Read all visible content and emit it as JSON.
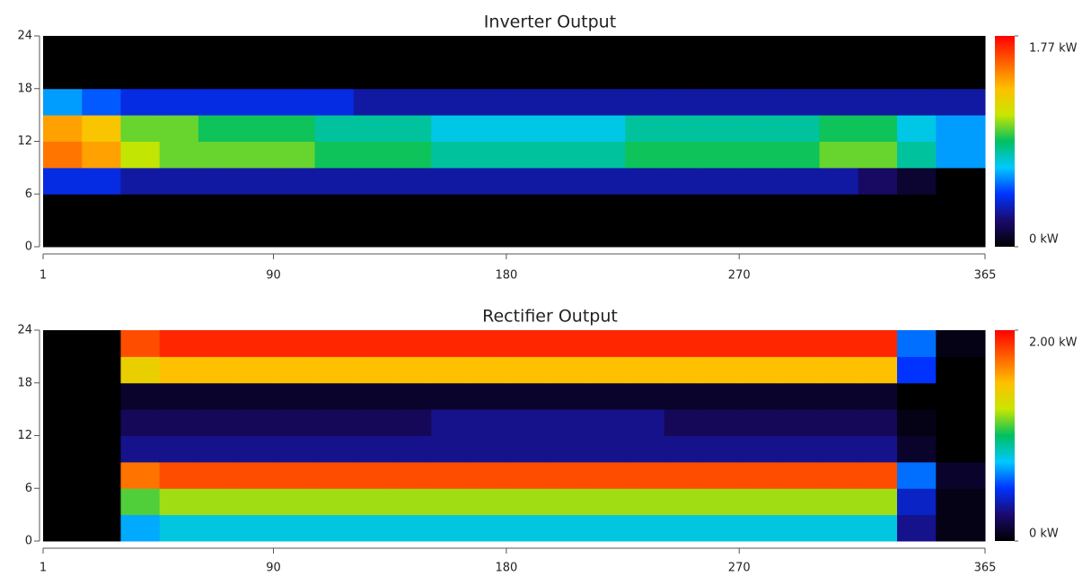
{
  "chart_data": [
    {
      "type": "heatmap",
      "title": "Inverter Output",
      "xbins": [
        1,
        16,
        31,
        46,
        61,
        76,
        91,
        106,
        121,
        136,
        151,
        166,
        181,
        196,
        211,
        226,
        241,
        256,
        271,
        286,
        301,
        316,
        331,
        346,
        365
      ],
      "ybins": [
        0,
        3,
        6,
        9,
        12,
        15,
        18,
        21,
        24
      ],
      "values": [
        [
          0,
          0,
          0,
          0,
          0,
          0,
          0,
          0,
          0,
          0,
          0,
          0,
          0,
          0,
          0,
          0,
          0,
          0,
          0,
          0,
          0,
          0,
          0,
          0
        ],
        [
          0,
          0,
          0,
          0,
          0,
          0,
          0,
          0,
          0,
          0,
          0,
          0,
          0,
          0,
          0,
          0,
          0,
          0,
          0,
          0,
          0,
          0,
          0,
          0
        ],
        [
          0.4,
          0.4,
          0.3,
          0.3,
          0.3,
          0.3,
          0.3,
          0.3,
          0.3,
          0.3,
          0.3,
          0.3,
          0.3,
          0.3,
          0.3,
          0.3,
          0.3,
          0.3,
          0.3,
          0.3,
          0.3,
          0.2,
          0.1,
          0
        ],
        [
          1.5,
          1.4,
          1.1,
          1.0,
          1.0,
          1.0,
          1.0,
          0.9,
          0.9,
          0.9,
          0.8,
          0.8,
          0.8,
          0.8,
          0.8,
          0.9,
          0.9,
          0.9,
          0.9,
          0.9,
          1.0,
          1.0,
          0.8,
          0.6
        ],
        [
          1.4,
          1.3,
          1.0,
          1.0,
          0.9,
          0.9,
          0.9,
          0.8,
          0.8,
          0.8,
          0.7,
          0.7,
          0.7,
          0.7,
          0.7,
          0.8,
          0.8,
          0.8,
          0.8,
          0.8,
          0.9,
          0.9,
          0.7,
          0.6
        ],
        [
          0.6,
          0.5,
          0.4,
          0.4,
          0.4,
          0.4,
          0.4,
          0.4,
          0.3,
          0.3,
          0.3,
          0.3,
          0.3,
          0.3,
          0.3,
          0.3,
          0.3,
          0.3,
          0.3,
          0.3,
          0.3,
          0.3,
          0.3,
          0.3
        ],
        [
          0,
          0,
          0,
          0,
          0,
          0,
          0,
          0,
          0,
          0,
          0,
          0,
          0,
          0,
          0,
          0,
          0,
          0,
          0,
          0,
          0,
          0,
          0,
          0
        ],
        [
          0,
          0,
          0,
          0,
          0,
          0,
          0,
          0,
          0,
          0,
          0,
          0,
          0,
          0,
          0,
          0,
          0,
          0,
          0,
          0,
          0,
          0,
          0,
          0
        ]
      ],
      "xlim": [
        1,
        365
      ],
      "xticks": [
        1,
        90,
        180,
        270,
        365
      ],
      "ylim": [
        0,
        24
      ],
      "yticks": [
        0,
        6,
        12,
        18,
        24
      ],
      "zlim": [
        0,
        1.77
      ],
      "zticks": [
        {
          "value": 1.77,
          "label": "1.77 kW"
        },
        {
          "value": 0,
          "label": "0 kW"
        }
      ],
      "colormap": [
        "#000000",
        "#1a0a6e",
        "#0033ff",
        "#00c8ff",
        "#00c060",
        "#c8e600",
        "#ffc000",
        "#ff6000",
        "#ff0000"
      ]
    },
    {
      "type": "heatmap",
      "title": "Rectifier Output",
      "xbins": [
        1,
        16,
        31,
        46,
        61,
        76,
        91,
        106,
        121,
        136,
        151,
        166,
        181,
        196,
        211,
        226,
        241,
        256,
        271,
        286,
        301,
        316,
        331,
        346,
        365
      ],
      "ybins": [
        0,
        3,
        6,
        9,
        12,
        15,
        18,
        21,
        24
      ],
      "values": [
        [
          0,
          0,
          0.7,
          0.8,
          0.8,
          0.8,
          0.8,
          0.8,
          0.8,
          0.8,
          0.8,
          0.8,
          0.8,
          0.8,
          0.8,
          0.8,
          0.8,
          0.8,
          0.8,
          0.8,
          0.8,
          0.8,
          0.3,
          0.05
        ],
        [
          0,
          0,
          1.1,
          1.2,
          1.2,
          1.2,
          1.2,
          1.2,
          1.2,
          1.2,
          1.2,
          1.2,
          1.2,
          1.2,
          1.2,
          1.2,
          1.2,
          1.2,
          1.2,
          1.2,
          1.2,
          1.2,
          0.4,
          0.05
        ],
        [
          0,
          0,
          1.7,
          1.8,
          1.8,
          1.8,
          1.8,
          1.8,
          1.8,
          1.8,
          1.8,
          1.8,
          1.8,
          1.8,
          1.8,
          1.8,
          1.8,
          1.8,
          1.8,
          1.8,
          1.8,
          1.8,
          0.6,
          0.1
        ],
        [
          0,
          0,
          0.3,
          0.3,
          0.3,
          0.3,
          0.3,
          0.3,
          0.3,
          0.3,
          0.3,
          0.3,
          0.3,
          0.3,
          0.3,
          0.3,
          0.3,
          0.3,
          0.3,
          0.3,
          0.3,
          0.3,
          0.1,
          0
        ],
        [
          0,
          0,
          0.2,
          0.2,
          0.2,
          0.2,
          0.2,
          0.2,
          0.2,
          0.2,
          0.3,
          0.3,
          0.3,
          0.3,
          0.3,
          0.3,
          0.2,
          0.2,
          0.2,
          0.2,
          0.2,
          0.2,
          0.05,
          0
        ],
        [
          0,
          0,
          0.1,
          0.1,
          0.1,
          0.1,
          0.1,
          0.1,
          0.1,
          0.1,
          0.1,
          0.1,
          0.1,
          0.1,
          0.1,
          0.1,
          0.1,
          0.1,
          0.1,
          0.1,
          0.1,
          0.1,
          0,
          0
        ],
        [
          0,
          0,
          1.4,
          1.5,
          1.5,
          1.5,
          1.5,
          1.5,
          1.5,
          1.5,
          1.5,
          1.5,
          1.5,
          1.5,
          1.5,
          1.5,
          1.5,
          1.5,
          1.5,
          1.5,
          1.5,
          1.5,
          0.5,
          0
        ],
        [
          0,
          0,
          1.8,
          1.9,
          1.9,
          1.9,
          1.9,
          1.9,
          1.9,
          1.9,
          1.9,
          1.9,
          1.9,
          1.9,
          1.9,
          1.9,
          1.9,
          1.9,
          1.9,
          1.9,
          1.9,
          1.9,
          0.6,
          0.05
        ]
      ],
      "xlim": [
        1,
        365
      ],
      "xticks": [
        1,
        90,
        180,
        270,
        365
      ],
      "ylim": [
        0,
        24
      ],
      "yticks": [
        0,
        6,
        12,
        18,
        24
      ],
      "zlim": [
        0,
        2.0
      ],
      "zticks": [
        {
          "value": 2.0,
          "label": "2.00 kW"
        },
        {
          "value": 0,
          "label": "0 kW"
        }
      ],
      "colormap": [
        "#000000",
        "#1a0a6e",
        "#0033ff",
        "#00c8ff",
        "#00c060",
        "#c8e600",
        "#ffc000",
        "#ff6000",
        "#ff0000"
      ]
    }
  ]
}
